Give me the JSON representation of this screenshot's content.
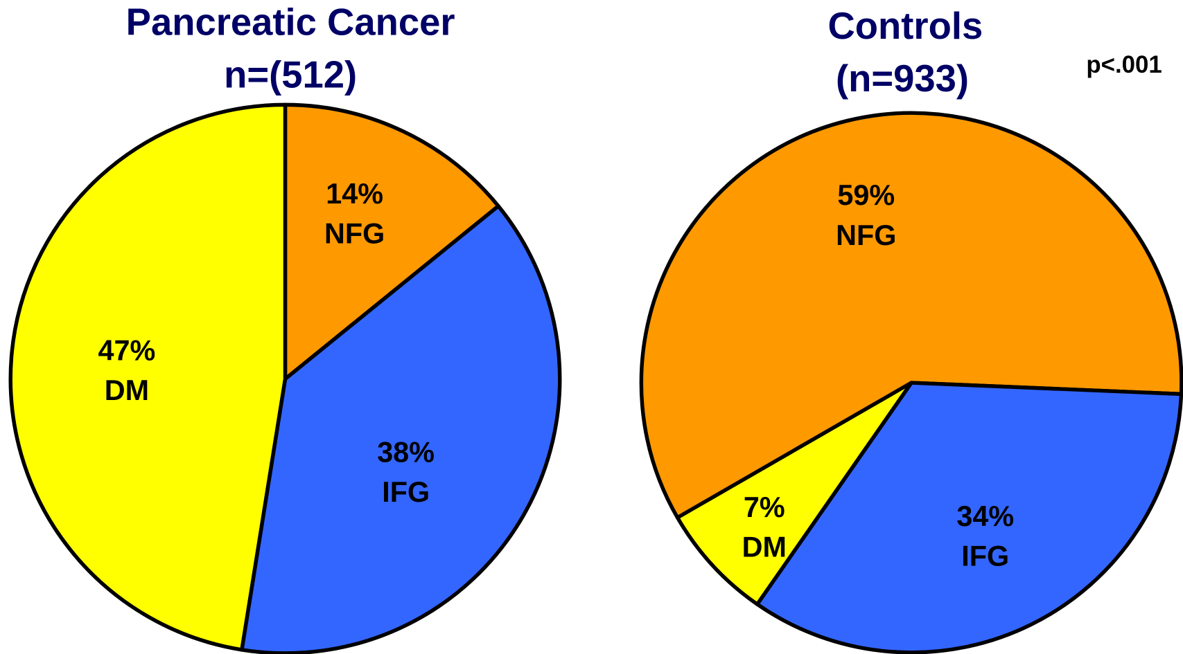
{
  "chart_data": [
    {
      "type": "pie",
      "title": "Pancreatic Cancer",
      "subtitle": "n=(512)",
      "categories": [
        "NFG",
        "IFG",
        "DM"
      ],
      "values": [
        14,
        38,
        47
      ],
      "value_labels": [
        "14%",
        "38%",
        "47%"
      ],
      "colors": [
        "#ff9900",
        "#3366ff",
        "#ffff00"
      ],
      "startangle": 0
    },
    {
      "type": "pie",
      "title": "Controls",
      "subtitle": "(n=933)",
      "annotation": "p<.001",
      "categories": [
        "NFG",
        "IFG",
        "DM"
      ],
      "values": [
        59,
        34,
        7
      ],
      "value_labels": [
        "59%",
        "34%",
        "7%"
      ],
      "colors": [
        "#ff9900",
        "#3366ff",
        "#ffff00"
      ],
      "startangle": 240
    }
  ]
}
